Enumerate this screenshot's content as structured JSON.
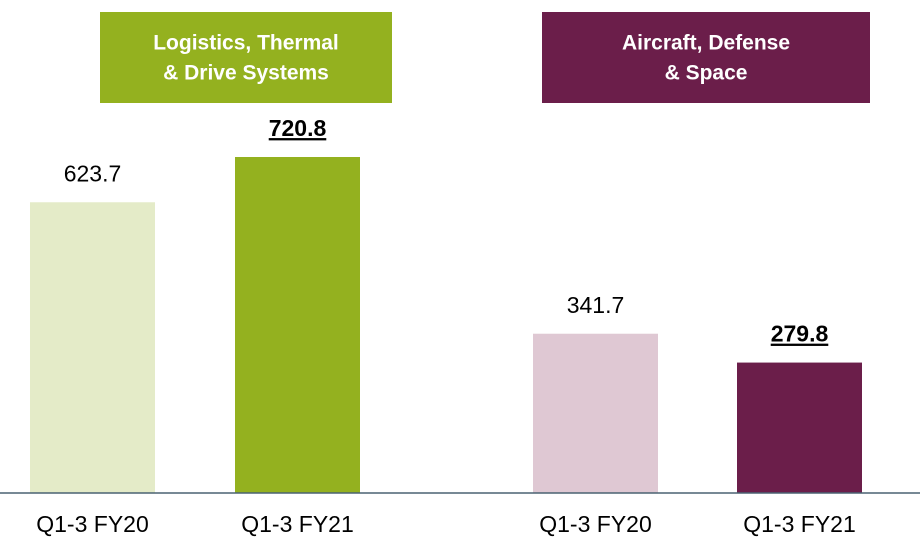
{
  "chart_data": [
    {
      "type": "bar",
      "title": [
        "Logistics, Thermal",
        "& Drive Systems"
      ],
      "title_color": "#94b11f",
      "categories": [
        "Q1-3 FY20",
        "Q1-3 FY21"
      ],
      "values": [
        623.7,
        720.8
      ],
      "colors": [
        "#e4ebc8",
        "#94b11f"
      ],
      "highlight": [
        false,
        true
      ]
    },
    {
      "type": "bar",
      "title": [
        "Aircraft, Defense",
        "& Space"
      ],
      "title_color": "#6b1e4a",
      "categories": [
        "Q1-3 FY20",
        "Q1-3 FY21"
      ],
      "values": [
        341.7,
        279.8
      ],
      "colors": [
        "#dfc8d3",
        "#6b1e4a"
      ],
      "highlight": [
        false,
        true
      ]
    }
  ]
}
